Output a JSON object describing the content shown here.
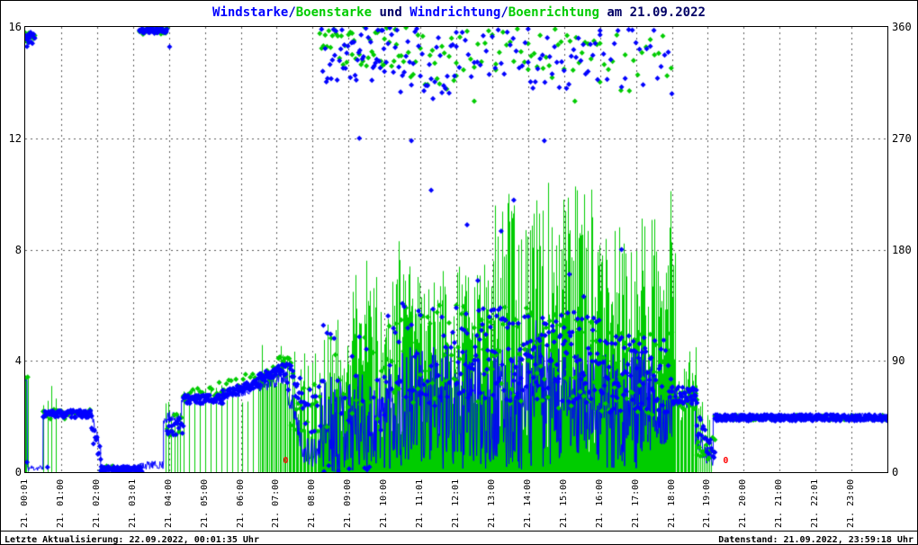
{
  "title": {
    "parts": [
      {
        "text": "Windstarke",
        "color": "#0000ff"
      },
      {
        "text": "/",
        "color": "#0000cc"
      },
      {
        "text": "Boenstarke",
        "color": "#00cc00"
      },
      {
        "text": " und ",
        "color": "#000066"
      },
      {
        "text": "Windrichtung",
        "color": "#0000ff"
      },
      {
        "text": "/",
        "color": "#0000cc"
      },
      {
        "text": "Boenrichtung",
        "color": "#00cc00"
      },
      {
        "text": " am 21.09.2022",
        "color": "#000066"
      }
    ]
  },
  "axes": {
    "left": {
      "ticks": [
        0,
        4,
        8,
        12,
        16
      ]
    },
    "right": {
      "ticks": [
        0,
        90,
        180,
        270,
        360
      ]
    },
    "x": {
      "labels": [
        "21. 00:01",
        "21. 01:00",
        "21. 02:00",
        "21. 03:01",
        "21. 04:00",
        "21. 05:00",
        "21. 06:00",
        "21. 07:00",
        "21. 08:00",
        "21. 09:00",
        "21. 10:00",
        "21. 11:01",
        "21. 12:01",
        "21. 13:00",
        "21. 14:00",
        "21. 15:00",
        "21. 16:00",
        "21. 17:00",
        "21. 18:00",
        "21. 19:00",
        "21. 20:00",
        "21. 21:00",
        "21. 22:01",
        "21. 23:00"
      ]
    }
  },
  "footer": {
    "last_update": "Letzte Aktualisierung: 22.09.2022, 00:01:35 Uhr",
    "data_state": "Datenstand: 21.09.2022, 23:59:18 Uhr"
  },
  "annotations": [
    {
      "hour": 7.25,
      "value_left": 0.4,
      "text": "0",
      "color": "#ff0000"
    },
    {
      "hour": 19.5,
      "value_left": 0.4,
      "text": "0",
      "color": "#ff0000"
    }
  ],
  "chart_data": {
    "type": "line",
    "title": "Windstarke/Boenstarke und Windrichtung/Boenrichtung am 21.09.2022",
    "x_unit": "hour_of_day_21_09_2022",
    "x_range": [
      0,
      24
    ],
    "y_left_axis": {
      "unit": "Windstarke/Boenstarke",
      "range": [
        0,
        16
      ],
      "ticks": [
        0,
        4,
        8,
        12,
        16
      ]
    },
    "y_right_axis": {
      "unit": "Windrichtung/Boenrichtung (deg)",
      "range": [
        0,
        360
      ],
      "ticks": [
        0,
        90,
        180,
        270,
        360
      ]
    },
    "grid": {
      "vertical_every_hour": true,
      "horizontal_at_left_values": [
        4,
        8,
        12
      ]
    },
    "segment_format": [
      "t0_hour",
      "t1_hour",
      "value_start",
      "value_end_or_null",
      "noise_amplitude",
      "sample_step_minutes"
    ],
    "series": [
      {
        "name": "Boenstarke",
        "axis": "left",
        "style": "impulses",
        "color": "#00cc00",
        "seed": 22,
        "segments": [
          [
            0.0,
            0.08,
            3.45,
            null,
            0.1,
            2
          ],
          [
            0.5,
            0.95,
            2.7,
            null,
            0.5,
            7
          ],
          [
            3.9,
            4.35,
            2.35,
            null,
            0.35,
            5
          ],
          [
            4.4,
            6.5,
            2.9,
            null,
            0.4,
            9
          ],
          [
            6.5,
            7.3,
            4.0,
            null,
            0.9,
            2.5
          ],
          [
            7.3,
            8.2,
            2.9,
            null,
            1.8,
            2
          ],
          [
            8.2,
            9.0,
            3.3,
            null,
            2.2,
            1.5
          ],
          [
            9.0,
            10.0,
            4.1,
            null,
            3.0,
            1
          ],
          [
            10.0,
            11.0,
            4.3,
            null,
            3.4,
            1
          ],
          [
            11.0,
            13.0,
            4.4,
            null,
            3.2,
            1
          ],
          [
            13.0,
            14.0,
            5.3,
            null,
            4.4,
            1
          ],
          [
            14.0,
            16.0,
            5.4,
            null,
            4.9,
            1
          ],
          [
            16.0,
            17.0,
            4.9,
            null,
            4.0,
            1
          ],
          [
            17.0,
            18.1,
            4.7,
            null,
            4.5,
            1
          ],
          [
            18.1,
            18.7,
            3.3,
            null,
            1.5,
            2
          ],
          [
            18.7,
            19.1,
            1.5,
            null,
            1.1,
            3
          ]
        ],
        "outliers": [
          [
            9.5,
            7.6
          ],
          [
            10.4,
            8.3
          ],
          [
            13.45,
            10.0
          ],
          [
            14.55,
            10.4
          ],
          [
            17.97,
            10.1
          ]
        ]
      },
      {
        "name": "Windstarke",
        "axis": "left",
        "style": "line",
        "color": "#0000ff",
        "seed": 11,
        "segments": [
          [
            0.0,
            0.06,
            3.3,
            null,
            0.08,
            1
          ],
          [
            0.06,
            0.5,
            0.15,
            null,
            0.12,
            1
          ],
          [
            0.5,
            1.85,
            2.15,
            null,
            0.1,
            1
          ],
          [
            1.85,
            2.1,
            2.0,
            0.9,
            0.25,
            1
          ],
          [
            2.1,
            3.2,
            0.15,
            null,
            0.12,
            1
          ],
          [
            3.2,
            3.85,
            0.25,
            null,
            0.15,
            1
          ],
          [
            3.85,
            4.35,
            1.95,
            null,
            0.22,
            1
          ],
          [
            4.35,
            5.5,
            2.55,
            null,
            0.15,
            1
          ],
          [
            5.5,
            6.5,
            2.75,
            3.05,
            0.18,
            1
          ],
          [
            6.5,
            7.3,
            3.2,
            3.5,
            0.35,
            1
          ],
          [
            7.3,
            7.8,
            3.0,
            0.6,
            0.45,
            1
          ],
          [
            7.8,
            8.2,
            0.7,
            null,
            0.55,
            1
          ],
          [
            8.2,
            10.0,
            1.8,
            null,
            1.8,
            1
          ],
          [
            10.0,
            14.2,
            2.3,
            null,
            2.2,
            1
          ],
          [
            14.2,
            14.35,
            4.2,
            null,
            1.4,
            1
          ],
          [
            14.35,
            17.5,
            2.3,
            null,
            2.2,
            1
          ],
          [
            17.5,
            18.0,
            2.0,
            null,
            1.0,
            1
          ],
          [
            18.0,
            18.65,
            2.6,
            null,
            0.35,
            1
          ],
          [
            18.65,
            19.15,
            1.3,
            0.3,
            0.35,
            1
          ],
          [
            19.15,
            24.0,
            2.05,
            null,
            0.07,
            1
          ]
        ],
        "outliers": []
      },
      {
        "name": "Boenrichtung",
        "axis": "right",
        "style": "points",
        "color": "#00cc00",
        "seed": 44,
        "segments": [
          [
            0.0,
            0.28,
            352,
            null,
            5,
            2
          ],
          [
            0.5,
            1.85,
            47,
            null,
            4,
            6
          ],
          [
            2.1,
            3.25,
            3,
            null,
            2,
            5
          ],
          [
            3.18,
            3.95,
            357,
            null,
            3,
            2
          ],
          [
            3.95,
            4.4,
            38,
            null,
            9,
            4
          ],
          [
            4.4,
            6.9,
            60,
            80,
            6,
            4
          ],
          [
            6.9,
            7.4,
            86,
            null,
            10,
            1.5
          ],
          [
            7.4,
            8.2,
            55,
            null,
            25,
            3
          ],
          [
            8.2,
            10.0,
            345,
            null,
            18,
            3
          ],
          [
            8.4,
            10.0,
            70,
            null,
            40,
            7
          ],
          [
            10.0,
            12.0,
            335,
            null,
            28,
            4
          ],
          [
            10.0,
            12.0,
            95,
            null,
            40,
            4
          ],
          [
            12.0,
            14.0,
            95,
            null,
            40,
            3
          ],
          [
            12.0,
            14.0,
            342,
            null,
            18,
            6
          ],
          [
            14.0,
            16.0,
            90,
            null,
            40,
            3
          ],
          [
            14.0,
            16.0,
            338,
            null,
            22,
            5
          ],
          [
            16.0,
            18.0,
            80,
            null,
            34,
            3
          ],
          [
            16.0,
            18.0,
            330,
            null,
            24,
            7
          ],
          [
            18.0,
            18.7,
            60,
            null,
            9,
            2
          ],
          [
            18.7,
            19.2,
            20,
            null,
            10,
            2
          ],
          [
            19.2,
            24.0,
            44,
            null,
            2,
            4
          ]
        ],
        "outliers": [
          [
            0.07,
            77
          ],
          [
            9.1,
            355
          ],
          [
            10.3,
            358
          ],
          [
            12.5,
            300
          ],
          [
            13.1,
            330
          ],
          [
            15.3,
            300
          ]
        ]
      },
      {
        "name": "Windrichtung",
        "axis": "right",
        "style": "points",
        "color": "#0000ff",
        "seed": 33,
        "segments": [
          [
            0.0,
            0.28,
            350,
            null,
            6,
            1
          ],
          [
            0.5,
            1.85,
            47,
            null,
            3,
            1
          ],
          [
            1.85,
            2.1,
            30,
            18,
            8,
            1.5
          ],
          [
            2.1,
            3.25,
            2.5,
            null,
            2,
            1
          ],
          [
            3.18,
            3.95,
            357,
            null,
            2.5,
            1
          ],
          [
            3.95,
            4.4,
            37,
            null,
            8,
            1.5
          ],
          [
            4.4,
            5.5,
            59,
            null,
            3.5,
            1
          ],
          [
            5.5,
            6.5,
            63,
            72,
            3.5,
            1
          ],
          [
            6.5,
            7.25,
            74,
            84,
            5,
            1
          ],
          [
            7.25,
            7.8,
            80,
            60,
            12,
            1.5
          ],
          [
            7.8,
            8.3,
            48,
            null,
            28,
            2.5
          ],
          [
            8.25,
            10.0,
            340,
            null,
            26,
            2
          ],
          [
            8.3,
            10.0,
            75,
            null,
            45,
            6
          ],
          [
            10.0,
            12.0,
            330,
            null,
            30,
            3
          ],
          [
            10.0,
            12.0,
            95,
            null,
            42,
            3
          ],
          [
            12.0,
            14.0,
            95,
            null,
            38,
            1.5
          ],
          [
            12.0,
            14.0,
            340,
            null,
            22,
            5
          ],
          [
            14.0,
            16.0,
            92,
            null,
            38,
            1.5
          ],
          [
            14.0,
            16.0,
            335,
            null,
            25,
            4
          ],
          [
            16.0,
            18.0,
            80,
            null,
            32,
            1.5
          ],
          [
            16.0,
            18.0,
            332,
            null,
            26,
            6
          ],
          [
            18.0,
            18.7,
            62,
            null,
            7,
            1
          ],
          [
            18.7,
            19.2,
            40,
            12,
            9,
            1.5
          ],
          [
            19.2,
            24.0,
            44,
            null,
            2.5,
            1
          ]
        ],
        "outliers": [
          [
            0.05,
            8
          ],
          [
            0.62,
            4
          ],
          [
            4.02,
            344
          ],
          [
            9.3,
            270
          ],
          [
            10.75,
            268
          ],
          [
            11.3,
            228
          ],
          [
            12.3,
            200
          ],
          [
            12.6,
            155
          ],
          [
            13.25,
            195
          ],
          [
            13.6,
            220
          ],
          [
            14.45,
            268
          ],
          [
            15.15,
            160
          ],
          [
            15.55,
            142
          ],
          [
            16.6,
            180
          ]
        ]
      }
    ]
  }
}
